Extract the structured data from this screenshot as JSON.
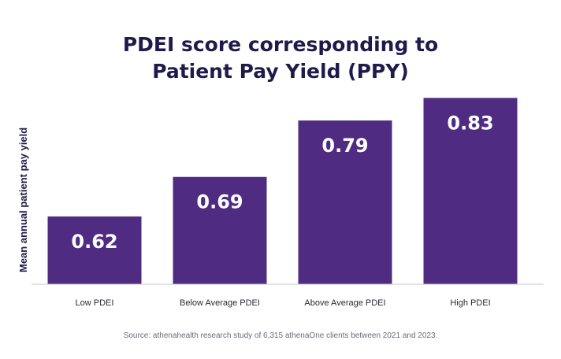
{
  "chart_data": {
    "type": "bar",
    "title_lines": [
      "PDEI score corresponding to",
      "Patient Pay Yield (PPY)"
    ],
    "ylabel": "Mean annual patient pay yield",
    "xlabel": "",
    "categories": [
      "Low PDEI",
      "Below Average PDEI",
      "Above Average PDEI",
      "High PDEI"
    ],
    "values": [
      0.62,
      0.69,
      0.79,
      0.83
    ],
    "data_labels": [
      "0.62",
      "0.69",
      "0.79",
      "0.83"
    ],
    "ylim": [
      0.5,
      0.85
    ],
    "grid": false,
    "legend": "none",
    "bar_color": "#4f2c82",
    "label_color": "#ffffff",
    "axis_color": "#c9c9c9",
    "source": "Source: athenahealth research study of 6,315 athenaOne clients between 2021 and 2023."
  }
}
